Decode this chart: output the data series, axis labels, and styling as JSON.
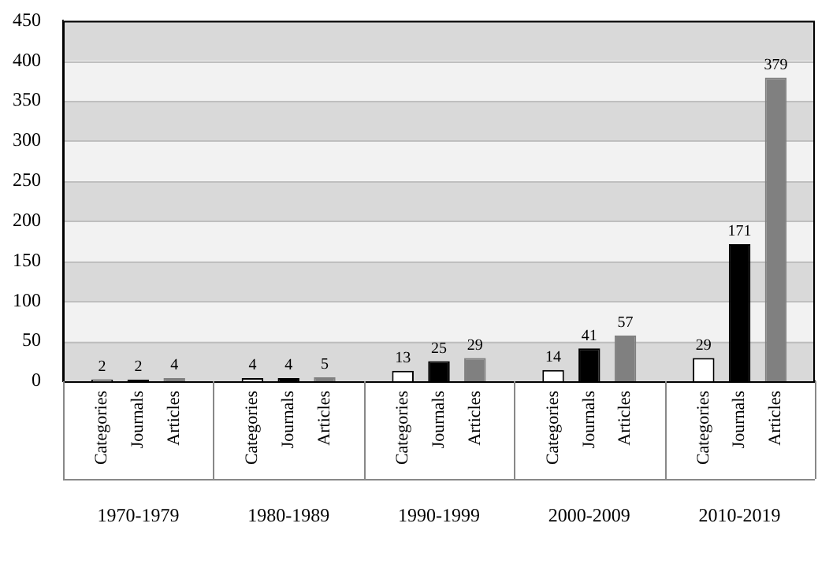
{
  "chart_data": {
    "type": "bar",
    "categories": [
      "1970-1979",
      "1980-1989",
      "1990-1999",
      "2000-2009",
      "2010-2019"
    ],
    "series": [
      {
        "name": "Categories",
        "color": "#ffffff",
        "values": [
          2,
          4,
          13,
          14,
          29
        ]
      },
      {
        "name": "Journals",
        "color": "#000000",
        "values": [
          2,
          4,
          25,
          41,
          171
        ]
      },
      {
        "name": "Articles",
        "color": "#808080",
        "values": [
          4,
          5,
          29,
          57,
          379
        ]
      }
    ],
    "ylim": [
      0,
      450
    ],
    "yticks": [
      0,
      50,
      100,
      150,
      200,
      250,
      300,
      350,
      400,
      450
    ],
    "grid": "y",
    "data_labels": true,
    "legend": false
  }
}
